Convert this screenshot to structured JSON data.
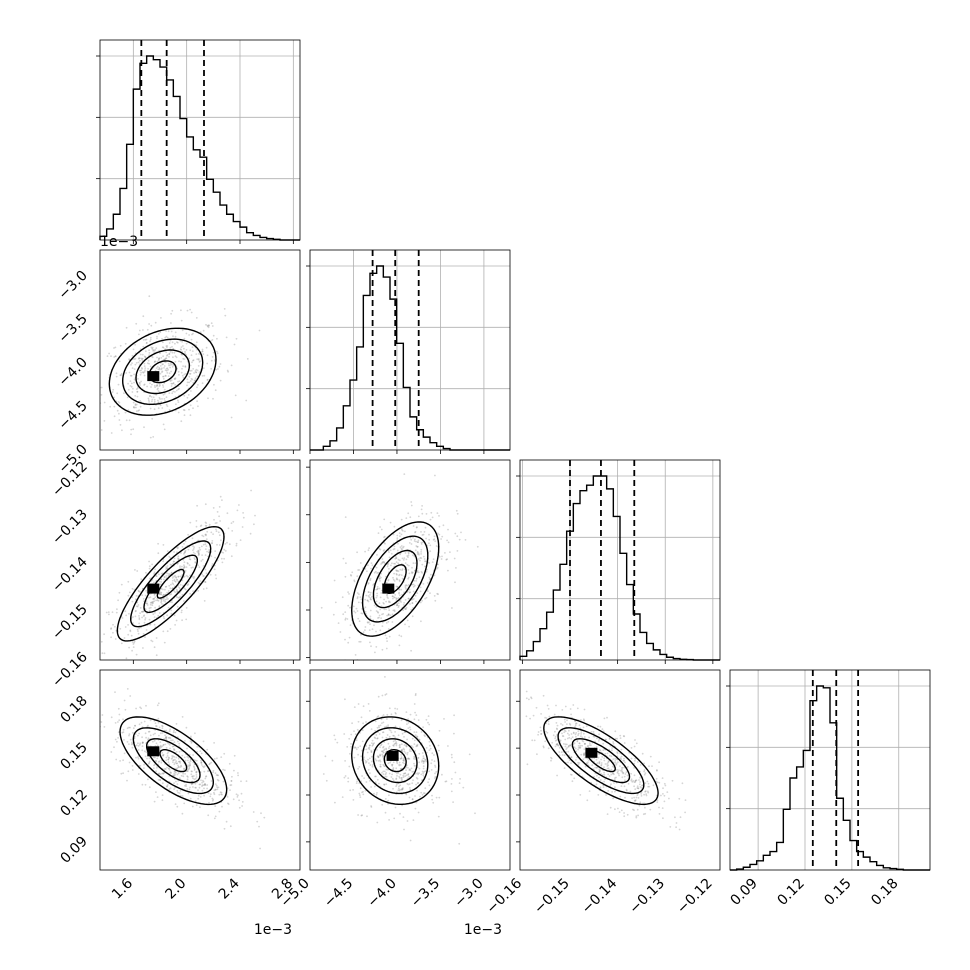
{
  "chart_data": {
    "type": "corner",
    "title": "",
    "dimensions": [
      {
        "index": 0,
        "ticks": [
          "1.6",
          "2.0",
          "2.4",
          "2.8"
        ],
        "tick_values": [
          1.6,
          2.0,
          2.4,
          2.8
        ],
        "range": [
          1.35,
          2.85
        ],
        "offset_label": "1e−3",
        "quantiles": [
          1.66,
          1.85,
          2.13
        ]
      },
      {
        "index": 1,
        "ticks": [
          "−5.0",
          "−4.5",
          "−4.0",
          "−3.5",
          "−3.0"
        ],
        "tick_values": [
          -5.0,
          -4.5,
          -4.0,
          -3.5,
          -3.0
        ],
        "range": [
          -5.0,
          -2.7
        ],
        "offset_label": "1e−3",
        "quantiles": [
          -4.28,
          -4.02,
          -3.75
        ]
      },
      {
        "index": 2,
        "ticks": [
          "−0.16",
          "−0.15",
          "−0.14",
          "−0.13",
          "−0.12"
        ],
        "tick_values": [
          -0.16,
          -0.15,
          -0.14,
          -0.13,
          -0.12
        ],
        "range": [
          -0.1605,
          -0.1185
        ],
        "offset_label": "",
        "quantiles": [
          -0.15,
          -0.1435,
          -0.1365
        ]
      },
      {
        "index": 3,
        "ticks": [
          "0.09",
          "0.12",
          "0.15",
          "0.18"
        ],
        "tick_values": [
          0.09,
          0.12,
          0.15,
          0.18
        ],
        "range": [
          0.072,
          0.2
        ],
        "offset_label": "",
        "quantiles": [
          0.125,
          0.14,
          0.154
        ]
      }
    ],
    "histograms": [
      {
        "dimension": 0,
        "bin_range": [
          1.35,
          2.85
        ],
        "counts": [
          0.02,
          0.06,
          0.14,
          0.28,
          0.52,
          0.82,
          0.96,
          1.0,
          0.98,
          0.94,
          0.87,
          0.78,
          0.66,
          0.56,
          0.49,
          0.45,
          0.33,
          0.26,
          0.19,
          0.14,
          0.1,
          0.07,
          0.04,
          0.025,
          0.014,
          0.008,
          0.004,
          0.0,
          0.0,
          0.0
        ],
        "peak_fraction": 0.92
      },
      {
        "dimension": 1,
        "bin_range": [
          -5.0,
          -2.7
        ],
        "counts": [
          0.0,
          0.0,
          0.02,
          0.05,
          0.12,
          0.24,
          0.38,
          0.56,
          0.84,
          0.96,
          1.0,
          0.94,
          0.82,
          0.58,
          0.34,
          0.18,
          0.11,
          0.07,
          0.04,
          0.02,
          0.008,
          0.0,
          0.0,
          0.0,
          0.0,
          0.0,
          0.0,
          0.0,
          0.0,
          0.0
        ],
        "peak_fraction": 0.92
      },
      {
        "dimension": 2,
        "bin_range": [
          -0.1605,
          -0.1185
        ],
        "counts": [
          0.02,
          0.05,
          0.1,
          0.17,
          0.26,
          0.38,
          0.52,
          0.7,
          0.85,
          0.92,
          0.95,
          1.0,
          1.0,
          0.93,
          0.78,
          0.58,
          0.41,
          0.25,
          0.15,
          0.09,
          0.055,
          0.03,
          0.015,
          0.008,
          0.004,
          0.002,
          0.0,
          0.0,
          0.0,
          0.0
        ],
        "peak_fraction": 0.92
      },
      {
        "dimension": 3,
        "bin_range": [
          0.072,
          0.2
        ],
        "counts": [
          0.0,
          0.005,
          0.015,
          0.03,
          0.05,
          0.08,
          0.1,
          0.15,
          0.33,
          0.5,
          0.56,
          0.65,
          0.92,
          1.0,
          0.99,
          0.8,
          0.39,
          0.27,
          0.16,
          0.1,
          0.07,
          0.045,
          0.025,
          0.012,
          0.008,
          0.004,
          0.0,
          0.0,
          0.0,
          0.0
        ],
        "peak_fraction": 0.92
      }
    ],
    "pairs": [
      {
        "x_dim": 0,
        "y_dim": 1,
        "center": [
          1.82,
          -4.1
        ],
        "sigma": [
          0.2,
          0.25
        ],
        "rho": 0.28,
        "mode": [
          1.75,
          -4.15
        ]
      },
      {
        "x_dim": 0,
        "y_dim": 2,
        "center": [
          1.88,
          -0.1445
        ],
        "sigma": [
          0.2,
          0.006
        ],
        "rho": 0.82,
        "mode": [
          1.75,
          -0.1455
        ]
      },
      {
        "x_dim": 0,
        "y_dim": 3,
        "center": [
          1.9,
          0.142
        ],
        "sigma": [
          0.2,
          0.014
        ],
        "rho": -0.66,
        "mode": [
          1.75,
          0.148
        ]
      },
      {
        "x_dim": 1,
        "y_dim": 2,
        "center": [
          -4.02,
          -0.1435
        ],
        "sigma": [
          0.25,
          0.006
        ],
        "rho": 0.55,
        "mode": [
          -4.1,
          -0.1455
        ]
      },
      {
        "x_dim": 1,
        "y_dim": 3,
        "center": [
          -4.02,
          0.142
        ],
        "sigma": [
          0.25,
          0.014
        ],
        "rho": -0.12,
        "mode": [
          -4.05,
          0.145
        ]
      },
      {
        "x_dim": 2,
        "y_dim": 3,
        "center": [
          -0.1435,
          0.142
        ],
        "sigma": [
          0.006,
          0.014
        ],
        "rho": -0.74,
        "mode": [
          -0.1455,
          0.147
        ]
      }
    ],
    "contour_levels_sigma": [
      0.5,
      1.0,
      1.5,
      2.0
    ],
    "grid": true,
    "colors": {
      "ink": "#000000",
      "grid": "#b0b0b0",
      "points": "#888888",
      "density": "#000000",
      "background": "#ffffff"
    }
  }
}
